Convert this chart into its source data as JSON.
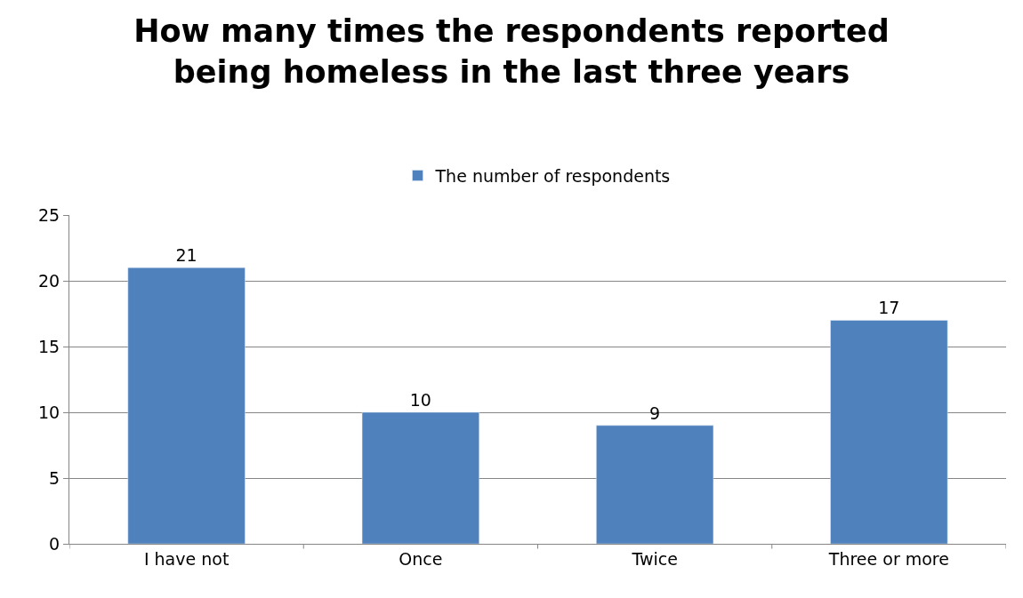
{
  "chart_data": {
    "type": "bar",
    "title": "How many times the respondents reported being homeless in the last three years",
    "categories": [
      "I have not",
      "Once",
      "Twice",
      "Three or more"
    ],
    "series": [
      {
        "name": "The number of respondents",
        "color": "#4f81bd",
        "values": [
          21,
          10,
          9,
          17
        ]
      }
    ],
    "ylim": [
      0,
      25
    ],
    "yticks": [
      0,
      5,
      10,
      15,
      20,
      25
    ],
    "grid": "y",
    "legend": "top",
    "data_labels": true
  }
}
